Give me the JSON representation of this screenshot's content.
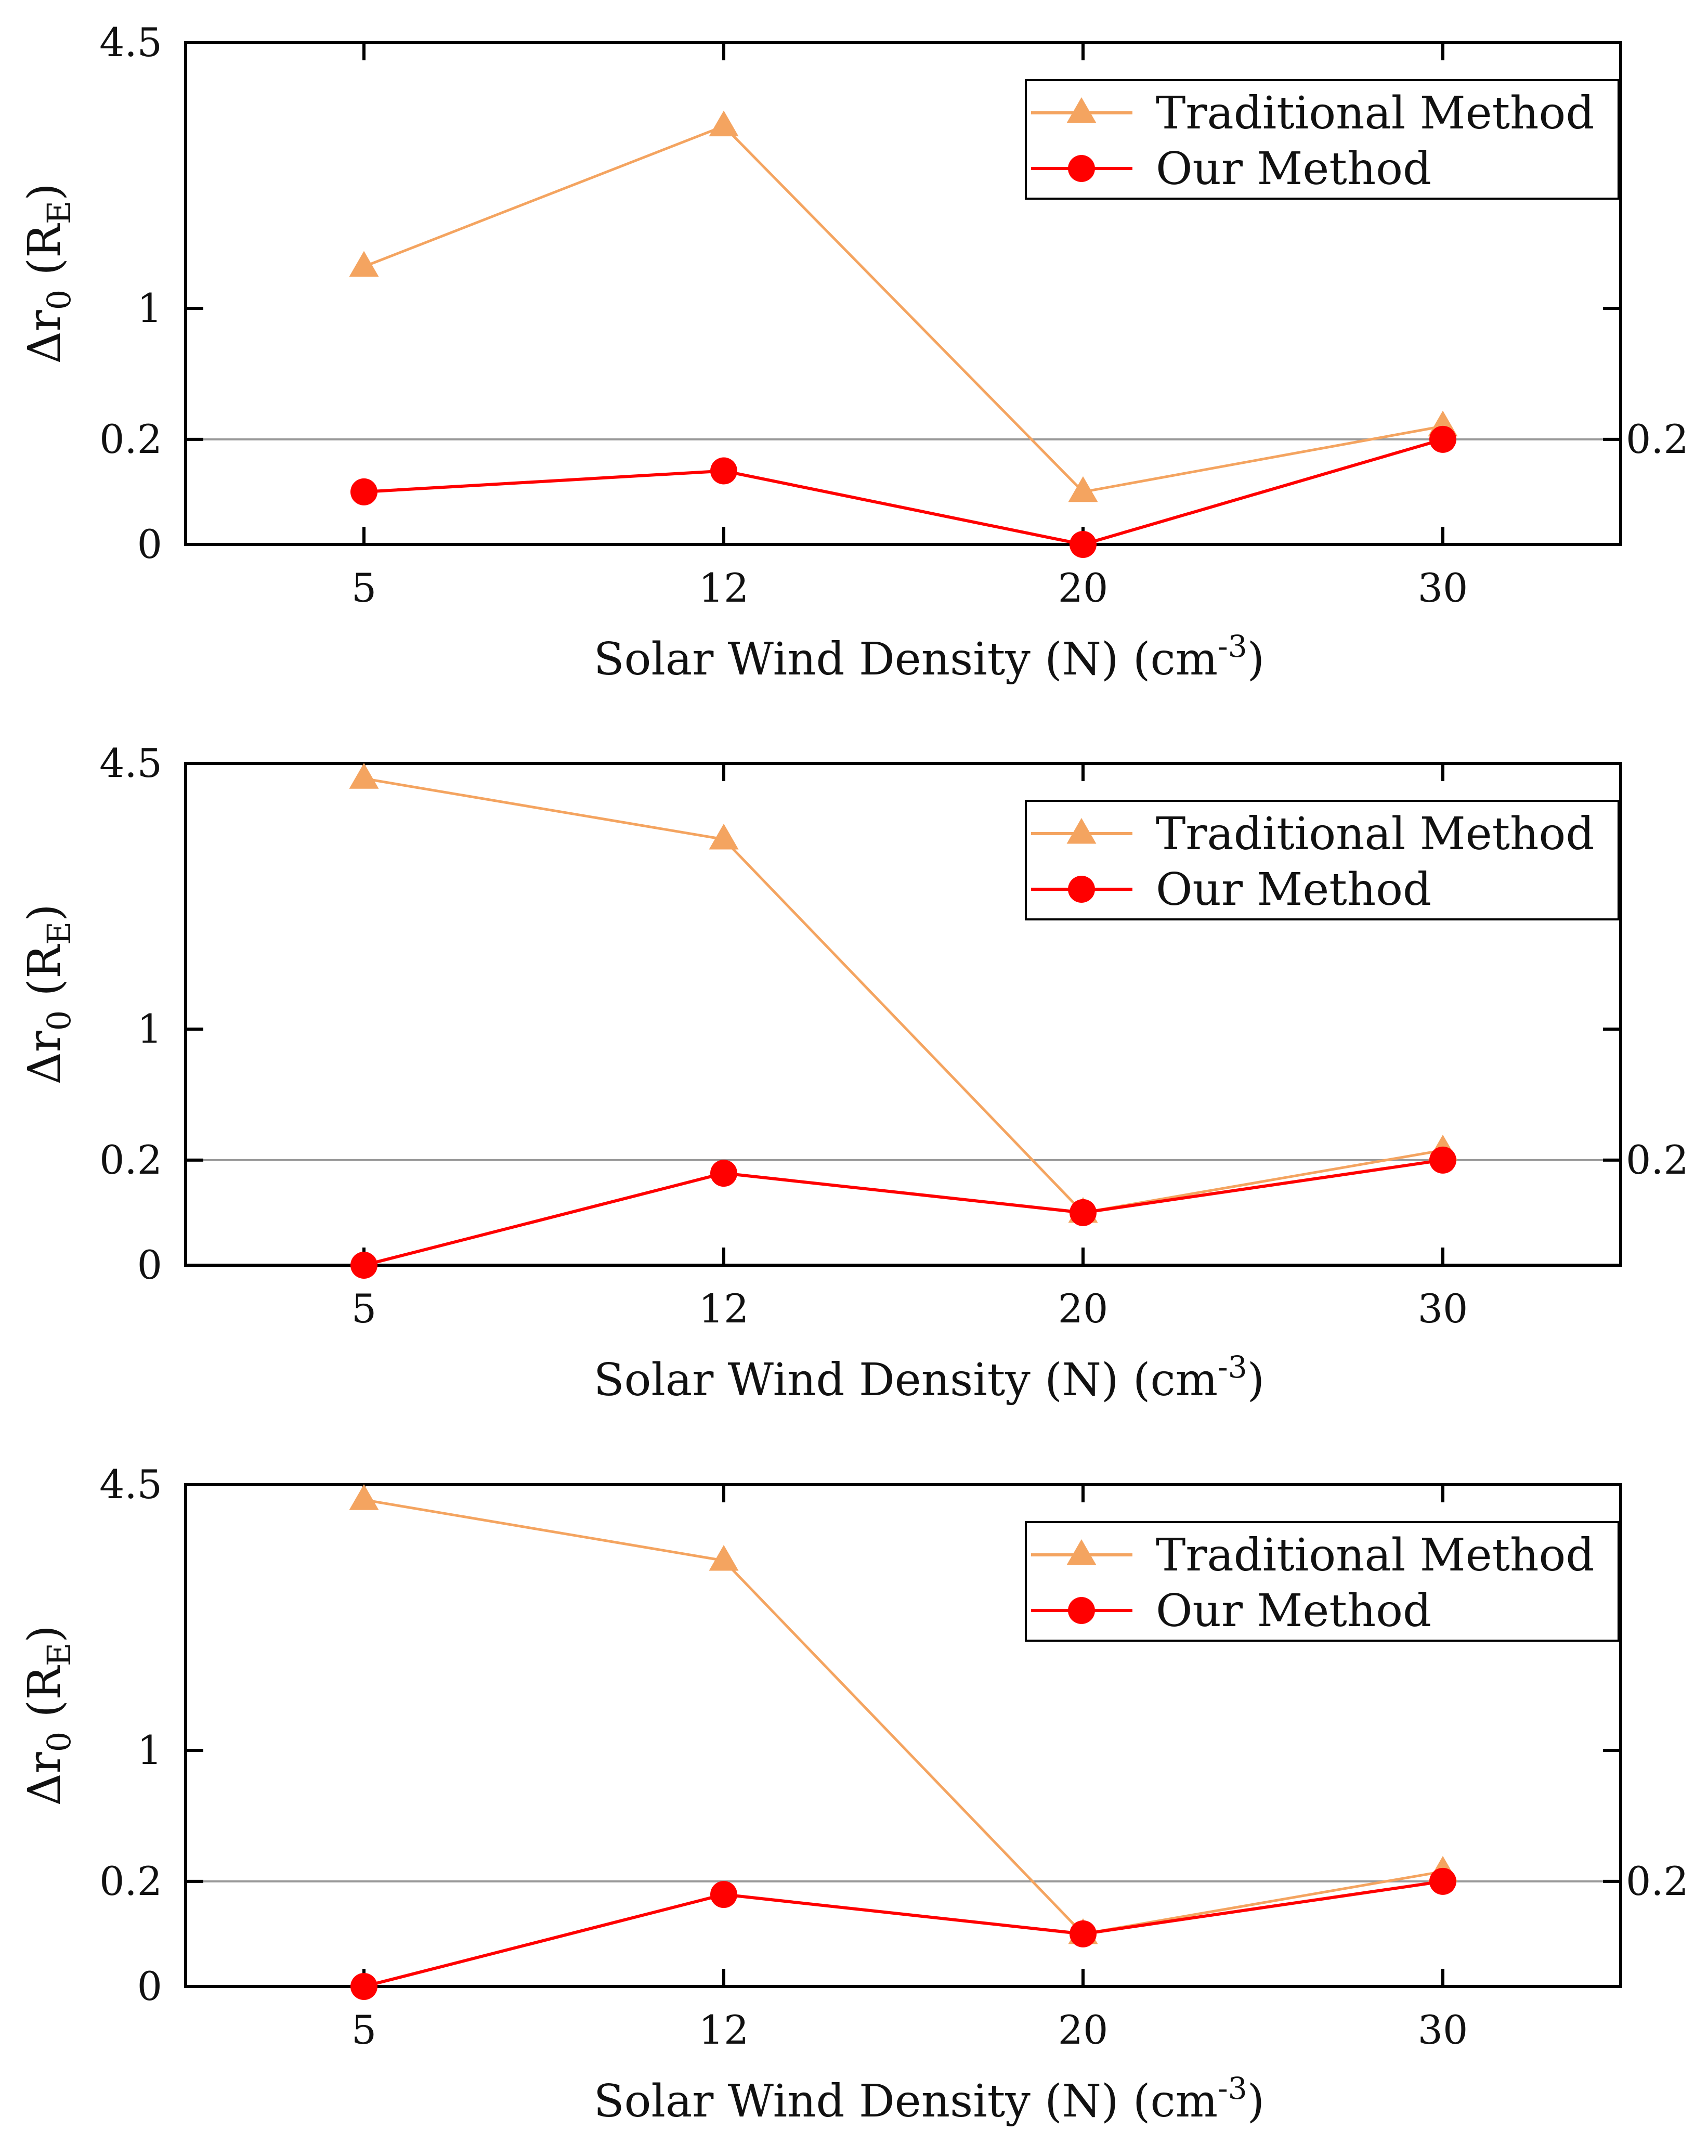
{
  "colors": {
    "traditional": "#F4A460",
    "our": "#FF0000",
    "axis": "#000000",
    "refline": "#999999"
  },
  "chart_data": [
    {
      "type": "line",
      "title": "",
      "xlabel": "Solar Wind Density (N)  (cm",
      "xlabel_sup": "-3",
      "xlabel_end": ")",
      "ylabel": "Δr",
      "ylabel_sub": "0",
      "ylabel_unit": " (R",
      "ylabel_unit_sub": "E",
      "ylabel_end": ")",
      "categories": [
        "5",
        "12",
        "20",
        "30"
      ],
      "y_ticks": [
        "0",
        "0.2",
        "1",
        "4.5"
      ],
      "y_break_scale": "piecewise: 0-0.2 linear, 0.2-1 linear, 1-4.5 linear",
      "right_tick_label": "0.2",
      "ylim": [
        0,
        4.5
      ],
      "reference_line": 0.2,
      "legend": "top-right",
      "series": [
        {
          "name": "Traditional Method",
          "marker": "triangle",
          "values": [
            1.55,
            3.4,
            0.1,
            0.28
          ]
        },
        {
          "name": "Our Method",
          "marker": "circle",
          "values": [
            0.1,
            0.14,
            0.0,
            0.2
          ]
        }
      ]
    },
    {
      "type": "line",
      "title": "",
      "xlabel": "Solar Wind Density (N)  (cm",
      "xlabel_sup": "-3",
      "xlabel_end": ")",
      "ylabel": "Δr",
      "ylabel_sub": "0",
      "ylabel_unit": " (R",
      "ylabel_unit_sub": "E",
      "ylabel_end": ")",
      "categories": [
        "5",
        "12",
        "20",
        "30"
      ],
      "y_ticks": [
        "0",
        "0.2",
        "1",
        "4.5"
      ],
      "y_break_scale": "piecewise: 0-0.2 linear, 0.2-1 linear, 1-4.5 linear",
      "right_tick_label": "0.2",
      "ylim": [
        0,
        4.5
      ],
      "reference_line": 0.2,
      "legend": "top-right",
      "series": [
        {
          "name": "Traditional Method",
          "marker": "triangle",
          "values": [
            4.3,
            3.5,
            0.1,
            0.26
          ]
        },
        {
          "name": "Our Method",
          "marker": "circle",
          "values": [
            0.0,
            0.175,
            0.1,
            0.2
          ]
        }
      ]
    },
    {
      "type": "line",
      "title": "",
      "xlabel": "Solar Wind Density (N)  (cm",
      "xlabel_sup": "-3",
      "xlabel_end": ")",
      "ylabel": "Δr",
      "ylabel_sub": "0",
      "ylabel_unit": " (R",
      "ylabel_unit_sub": "E",
      "ylabel_end": ")",
      "categories": [
        "5",
        "12",
        "20",
        "30"
      ],
      "y_ticks": [
        "0",
        "0.2",
        "1",
        "4.5"
      ],
      "y_break_scale": "piecewise: 0-0.2 linear, 0.2-1 linear, 1-4.5 linear",
      "right_tick_label": "0.2",
      "ylim": [
        0,
        4.5
      ],
      "reference_line": 0.2,
      "legend": "top-right",
      "series": [
        {
          "name": "Traditional Method",
          "marker": "triangle",
          "values": [
            4.3,
            3.5,
            0.1,
            0.26
          ]
        },
        {
          "name": "Our Method",
          "marker": "circle",
          "values": [
            0.0,
            0.175,
            0.1,
            0.2
          ]
        }
      ]
    }
  ]
}
